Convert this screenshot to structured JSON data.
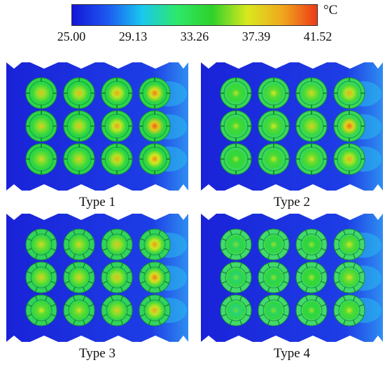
{
  "colorbar": {
    "unit": "°C",
    "ticks": [
      "25.00",
      "29.13",
      "33.26",
      "37.39",
      "41.52"
    ],
    "gradient_colors": [
      "#1515d8",
      "#1c58f0",
      "#19c8ef",
      "#2ee86a",
      "#2fd12a",
      "#d9e91e",
      "#f0a81d",
      "#ee3a17"
    ]
  },
  "panels": [
    {
      "caption": "Type 1",
      "style": "cap",
      "cell_fill": "#2bd64a",
      "core_hot": [
        [
          0.78,
          0.8,
          0.84,
          0.9
        ],
        [
          0.76,
          0.78,
          0.85,
          0.94
        ],
        [
          0.74,
          0.76,
          0.82,
          0.88
        ]
      ]
    },
    {
      "caption": "Type 2",
      "style": "cap",
      "cell_fill": "#38d85a",
      "core_hot": [
        [
          0.66,
          0.7,
          0.74,
          0.82
        ],
        [
          0.66,
          0.7,
          0.76,
          0.92
        ],
        [
          0.64,
          0.68,
          0.72,
          0.82
        ]
      ]
    },
    {
      "caption": "Type 3",
      "style": "fin",
      "cell_fill": "#32d45c",
      "core_hot": [
        [
          0.74,
          0.74,
          0.78,
          0.86
        ],
        [
          0.76,
          0.76,
          0.8,
          0.9
        ],
        [
          0.7,
          0.72,
          0.76,
          0.84
        ]
      ]
    },
    {
      "caption": "Type 4",
      "style": "fin",
      "cell_fill": "#42da6c",
      "core_hot": [
        [
          0.58,
          0.6,
          0.62,
          0.7
        ],
        [
          0.56,
          0.6,
          0.64,
          0.72
        ],
        [
          0.54,
          0.58,
          0.62,
          0.68
        ]
      ]
    }
  ]
}
